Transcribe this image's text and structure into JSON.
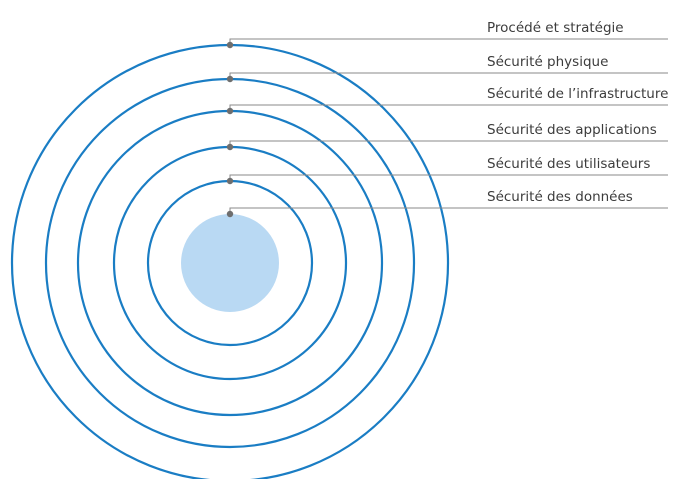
{
  "colors": {
    "ring": "#1a7dc4",
    "core": "#b9d9f3",
    "leader_line": "#8a8a8a",
    "pin": "#6e6e6e",
    "label_text": "#3c3c3c"
  },
  "layers": [
    {
      "label": "Procédé et stratégie"
    },
    {
      "label": "Sécurité physique"
    },
    {
      "label": "Sécurité de l’infrastructure"
    },
    {
      "label": "Sécurité des applications"
    },
    {
      "label": "Sécurité des utilisateurs"
    },
    {
      "label": "Sécurité des données"
    }
  ]
}
